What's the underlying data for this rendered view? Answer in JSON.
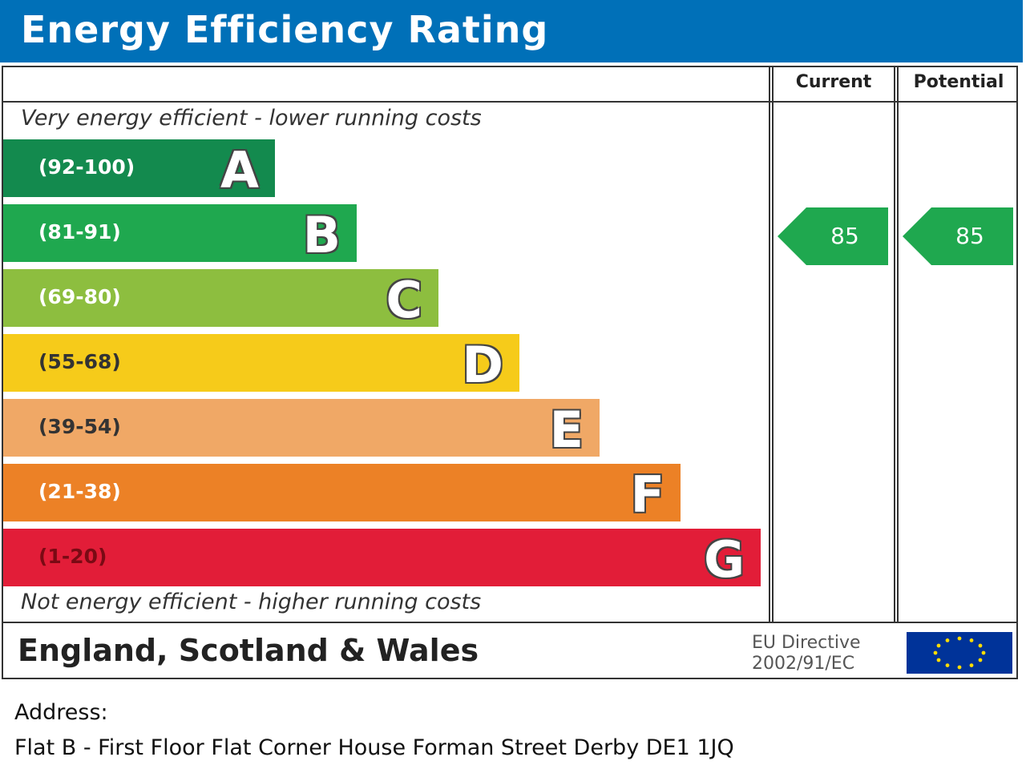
{
  "header": {
    "title": "Energy Efficiency Rating"
  },
  "columns": {
    "current": "Current",
    "potential": "Potential"
  },
  "notes": {
    "top": "Very energy efficient - lower running costs",
    "bottom": "Not energy efficient - higher running costs"
  },
  "footer": {
    "country": "England, Scotland & Wales",
    "eu_line1": "EU Directive",
    "eu_line2": "2002/91/EC"
  },
  "address": {
    "label": "Address:",
    "value": "Flat B  -  First Floor Flat Corner House Forman  Street Derby DE1 1JQ"
  },
  "colors": {
    "header": "#0070b8",
    "A": "#138a4e",
    "B": "#1fa84f",
    "C": "#8dbe3f",
    "D": "#f6cb1a",
    "E": "#f0a866",
    "F": "#ec8126",
    "G": "#e21d38",
    "eu_flag": "#003399",
    "eu_stars": "#ffdd00"
  },
  "chart_data": {
    "type": "bar",
    "title": "Energy Efficiency Rating",
    "bands": [
      {
        "letter": "A",
        "range": "(92-100)",
        "min": 92,
        "max": 100
      },
      {
        "letter": "B",
        "range": "(81-91)",
        "min": 81,
        "max": 91
      },
      {
        "letter": "C",
        "range": "(69-80)",
        "min": 69,
        "max": 80
      },
      {
        "letter": "D",
        "range": "(55-68)",
        "min": 55,
        "max": 68
      },
      {
        "letter": "E",
        "range": "(39-54)",
        "min": 39,
        "max": 54
      },
      {
        "letter": "F",
        "range": "(21-38)",
        "min": 21,
        "max": 38
      },
      {
        "letter": "G",
        "range": "(1-20)",
        "min": 1,
        "max": 20
      }
    ],
    "current": {
      "value": 85,
      "band": "B"
    },
    "potential": {
      "value": 85,
      "band": "B"
    }
  }
}
